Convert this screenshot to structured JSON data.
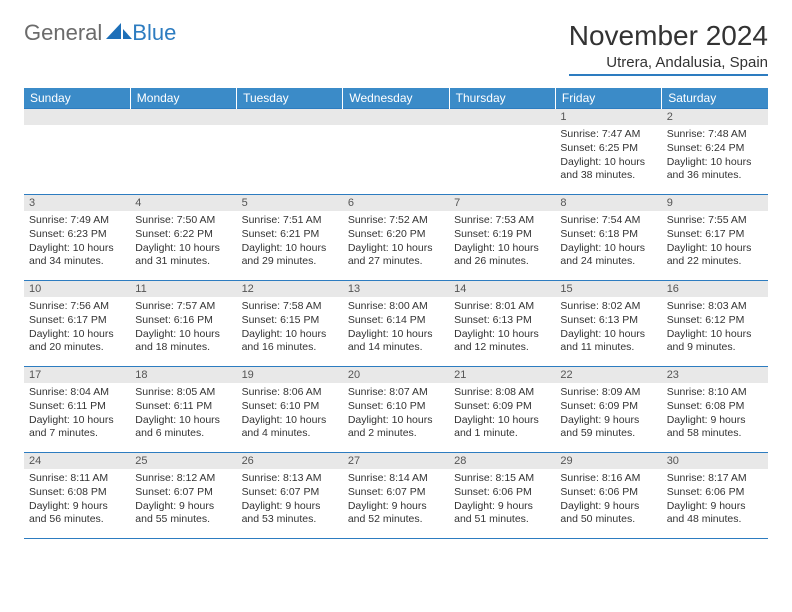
{
  "brand": {
    "part1": "General",
    "part2": "Blue"
  },
  "header": {
    "month_title": "November 2024",
    "location": "Utrera, Andalusia, Spain"
  },
  "style": {
    "accent_color": "#3b8bc8",
    "border_color": "#2d7cc0",
    "daynum_bg": "#e8e8e8",
    "text_color": "#333333",
    "logo_gray": "#6b6b6b"
  },
  "day_labels": [
    "Sunday",
    "Monday",
    "Tuesday",
    "Wednesday",
    "Thursday",
    "Friday",
    "Saturday"
  ],
  "weeks": [
    [
      null,
      null,
      null,
      null,
      null,
      {
        "n": "1",
        "sr": "Sunrise: 7:47 AM",
        "ss": "Sunset: 6:25 PM",
        "dl": "Daylight: 10 hours and 38 minutes."
      },
      {
        "n": "2",
        "sr": "Sunrise: 7:48 AM",
        "ss": "Sunset: 6:24 PM",
        "dl": "Daylight: 10 hours and 36 minutes."
      }
    ],
    [
      {
        "n": "3",
        "sr": "Sunrise: 7:49 AM",
        "ss": "Sunset: 6:23 PM",
        "dl": "Daylight: 10 hours and 34 minutes."
      },
      {
        "n": "4",
        "sr": "Sunrise: 7:50 AM",
        "ss": "Sunset: 6:22 PM",
        "dl": "Daylight: 10 hours and 31 minutes."
      },
      {
        "n": "5",
        "sr": "Sunrise: 7:51 AM",
        "ss": "Sunset: 6:21 PM",
        "dl": "Daylight: 10 hours and 29 minutes."
      },
      {
        "n": "6",
        "sr": "Sunrise: 7:52 AM",
        "ss": "Sunset: 6:20 PM",
        "dl": "Daylight: 10 hours and 27 minutes."
      },
      {
        "n": "7",
        "sr": "Sunrise: 7:53 AM",
        "ss": "Sunset: 6:19 PM",
        "dl": "Daylight: 10 hours and 26 minutes."
      },
      {
        "n": "8",
        "sr": "Sunrise: 7:54 AM",
        "ss": "Sunset: 6:18 PM",
        "dl": "Daylight: 10 hours and 24 minutes."
      },
      {
        "n": "9",
        "sr": "Sunrise: 7:55 AM",
        "ss": "Sunset: 6:17 PM",
        "dl": "Daylight: 10 hours and 22 minutes."
      }
    ],
    [
      {
        "n": "10",
        "sr": "Sunrise: 7:56 AM",
        "ss": "Sunset: 6:17 PM",
        "dl": "Daylight: 10 hours and 20 minutes."
      },
      {
        "n": "11",
        "sr": "Sunrise: 7:57 AM",
        "ss": "Sunset: 6:16 PM",
        "dl": "Daylight: 10 hours and 18 minutes."
      },
      {
        "n": "12",
        "sr": "Sunrise: 7:58 AM",
        "ss": "Sunset: 6:15 PM",
        "dl": "Daylight: 10 hours and 16 minutes."
      },
      {
        "n": "13",
        "sr": "Sunrise: 8:00 AM",
        "ss": "Sunset: 6:14 PM",
        "dl": "Daylight: 10 hours and 14 minutes."
      },
      {
        "n": "14",
        "sr": "Sunrise: 8:01 AM",
        "ss": "Sunset: 6:13 PM",
        "dl": "Daylight: 10 hours and 12 minutes."
      },
      {
        "n": "15",
        "sr": "Sunrise: 8:02 AM",
        "ss": "Sunset: 6:13 PM",
        "dl": "Daylight: 10 hours and 11 minutes."
      },
      {
        "n": "16",
        "sr": "Sunrise: 8:03 AM",
        "ss": "Sunset: 6:12 PM",
        "dl": "Daylight: 10 hours and 9 minutes."
      }
    ],
    [
      {
        "n": "17",
        "sr": "Sunrise: 8:04 AM",
        "ss": "Sunset: 6:11 PM",
        "dl": "Daylight: 10 hours and 7 minutes."
      },
      {
        "n": "18",
        "sr": "Sunrise: 8:05 AM",
        "ss": "Sunset: 6:11 PM",
        "dl": "Daylight: 10 hours and 6 minutes."
      },
      {
        "n": "19",
        "sr": "Sunrise: 8:06 AM",
        "ss": "Sunset: 6:10 PM",
        "dl": "Daylight: 10 hours and 4 minutes."
      },
      {
        "n": "20",
        "sr": "Sunrise: 8:07 AM",
        "ss": "Sunset: 6:10 PM",
        "dl": "Daylight: 10 hours and 2 minutes."
      },
      {
        "n": "21",
        "sr": "Sunrise: 8:08 AM",
        "ss": "Sunset: 6:09 PM",
        "dl": "Daylight: 10 hours and 1 minute."
      },
      {
        "n": "22",
        "sr": "Sunrise: 8:09 AM",
        "ss": "Sunset: 6:09 PM",
        "dl": "Daylight: 9 hours and 59 minutes."
      },
      {
        "n": "23",
        "sr": "Sunrise: 8:10 AM",
        "ss": "Sunset: 6:08 PM",
        "dl": "Daylight: 9 hours and 58 minutes."
      }
    ],
    [
      {
        "n": "24",
        "sr": "Sunrise: 8:11 AM",
        "ss": "Sunset: 6:08 PM",
        "dl": "Daylight: 9 hours and 56 minutes."
      },
      {
        "n": "25",
        "sr": "Sunrise: 8:12 AM",
        "ss": "Sunset: 6:07 PM",
        "dl": "Daylight: 9 hours and 55 minutes."
      },
      {
        "n": "26",
        "sr": "Sunrise: 8:13 AM",
        "ss": "Sunset: 6:07 PM",
        "dl": "Daylight: 9 hours and 53 minutes."
      },
      {
        "n": "27",
        "sr": "Sunrise: 8:14 AM",
        "ss": "Sunset: 6:07 PM",
        "dl": "Daylight: 9 hours and 52 minutes."
      },
      {
        "n": "28",
        "sr": "Sunrise: 8:15 AM",
        "ss": "Sunset: 6:06 PM",
        "dl": "Daylight: 9 hours and 51 minutes."
      },
      {
        "n": "29",
        "sr": "Sunrise: 8:16 AM",
        "ss": "Sunset: 6:06 PM",
        "dl": "Daylight: 9 hours and 50 minutes."
      },
      {
        "n": "30",
        "sr": "Sunrise: 8:17 AM",
        "ss": "Sunset: 6:06 PM",
        "dl": "Daylight: 9 hours and 48 minutes."
      }
    ]
  ]
}
